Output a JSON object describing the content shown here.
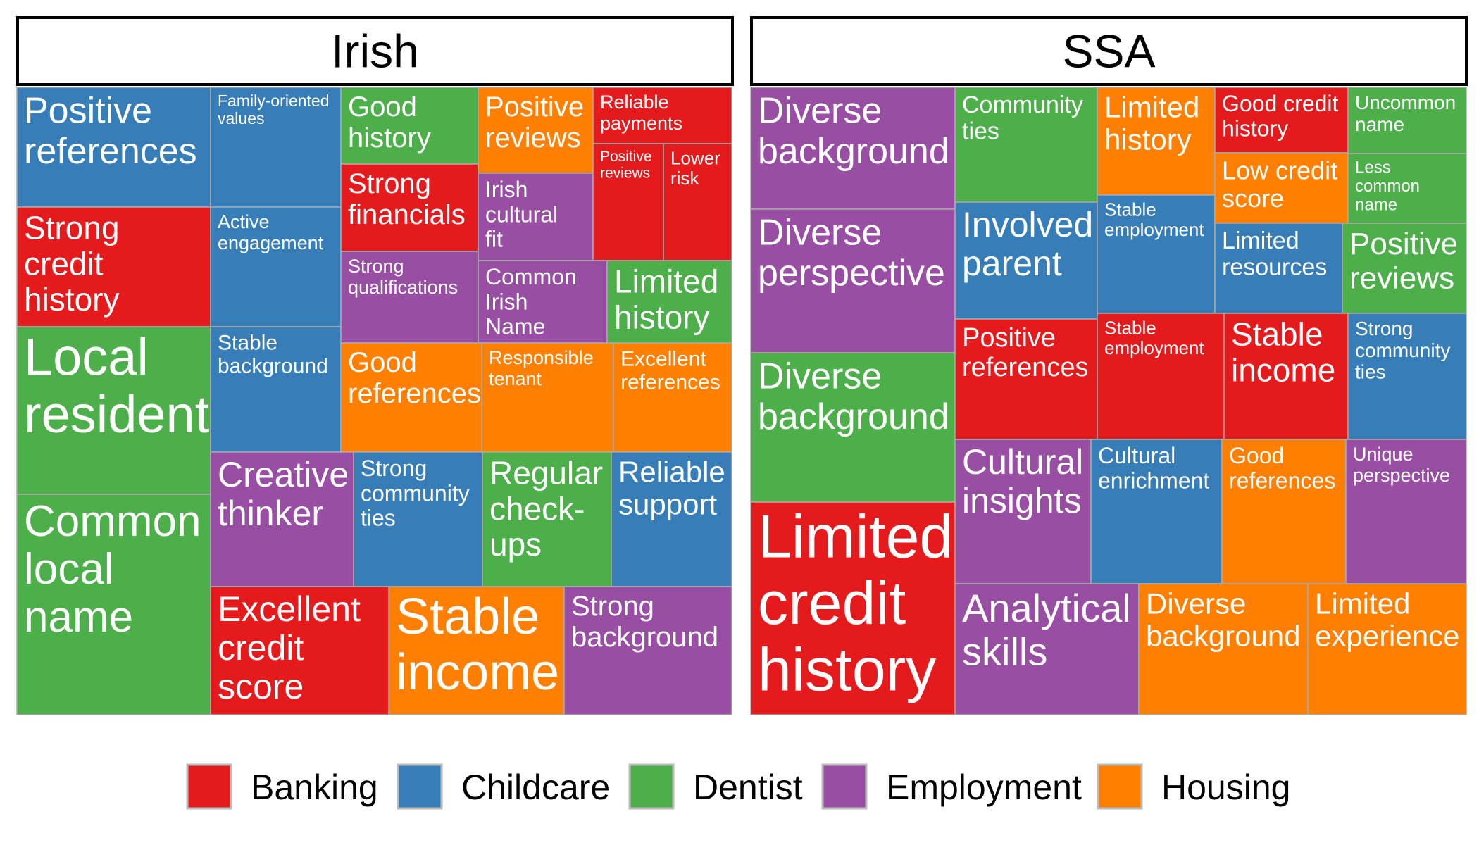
{
  "chart_data": {
    "type": "treemap",
    "colors": {
      "Banking": "#e41a1c",
      "Childcare": "#377eb8",
      "Dentist": "#4daf4a",
      "Employment": "#984ea3",
      "Housing": "#ff7f00"
    },
    "legend": {
      "position": "bottom",
      "items": [
        "Banking",
        "Childcare",
        "Dentist",
        "Employment",
        "Housing"
      ]
    },
    "panels": [
      {
        "title": "Irish",
        "cells": [
          {
            "label": "Positive references",
            "category": "Childcare"
          },
          {
            "label": "Strong credit history",
            "category": "Banking"
          },
          {
            "label": "Local resident",
            "category": "Dentist"
          },
          {
            "label": "Common local name",
            "category": "Dentist"
          },
          {
            "label": "Family-oriented values",
            "category": "Childcare"
          },
          {
            "label": "Active engagement",
            "category": "Childcare"
          },
          {
            "label": "Stable background",
            "category": "Childcare"
          },
          {
            "label": "Good history",
            "category": "Dentist"
          },
          {
            "label": "Strong financials",
            "category": "Banking"
          },
          {
            "label": "Strong qualifications",
            "category": "Employment"
          },
          {
            "label": "Positive reviews",
            "category": "Housing"
          },
          {
            "label": "Irish cultural fit",
            "category": "Employment"
          },
          {
            "label": "Reliable payments",
            "category": "Banking"
          },
          {
            "label": "Positive reviews",
            "category": "Banking"
          },
          {
            "label": "Lower risk",
            "category": "Banking"
          },
          {
            "label": "Common Irish Name",
            "category": "Employment"
          },
          {
            "label": "Limited history",
            "category": "Dentist"
          },
          {
            "label": "Good references",
            "category": "Housing"
          },
          {
            "label": "Responsible tenant",
            "category": "Housing"
          },
          {
            "label": "Excellent references",
            "category": "Housing"
          },
          {
            "label": "Creative thinker",
            "category": "Employment"
          },
          {
            "label": "Strong community ties",
            "category": "Childcare"
          },
          {
            "label": "Regular check-ups",
            "category": "Dentist"
          },
          {
            "label": "Reliable support",
            "category": "Childcare"
          },
          {
            "label": "Excellent credit score",
            "category": "Banking"
          },
          {
            "label": "Stable income",
            "category": "Housing"
          },
          {
            "label": "Strong background",
            "category": "Employment"
          }
        ]
      },
      {
        "title": "SSA",
        "cells": [
          {
            "label": "Diverse background",
            "category": "Employment"
          },
          {
            "label": "Diverse perspective",
            "category": "Employment"
          },
          {
            "label": "Diverse background",
            "category": "Dentist"
          },
          {
            "label": "Limited credit history",
            "category": "Banking"
          },
          {
            "label": "Community ties",
            "category": "Dentist"
          },
          {
            "label": "Involved parent",
            "category": "Childcare"
          },
          {
            "label": "Limited history",
            "category": "Housing"
          },
          {
            "label": "Stable employment",
            "category": "Childcare"
          },
          {
            "label": "Good credit history",
            "category": "Banking"
          },
          {
            "label": "Low credit score",
            "category": "Housing"
          },
          {
            "label": "Uncommon name",
            "category": "Dentist"
          },
          {
            "label": "Less common name",
            "category": "Dentist"
          },
          {
            "label": "Limited resources",
            "category": "Childcare"
          },
          {
            "label": "Positive reviews",
            "category": "Dentist"
          },
          {
            "label": "Positive references",
            "category": "Banking"
          },
          {
            "label": "Stable employment",
            "category": "Banking"
          },
          {
            "label": "Stable income",
            "category": "Banking"
          },
          {
            "label": "Strong community ties",
            "category": "Childcare"
          },
          {
            "label": "Cultural insights",
            "category": "Employment"
          },
          {
            "label": "Cultural enrichment",
            "category": "Childcare"
          },
          {
            "label": "Good references",
            "category": "Housing"
          },
          {
            "label": "Unique perspective",
            "category": "Employment"
          },
          {
            "label": "Analytical skills",
            "category": "Employment"
          },
          {
            "label": "Diverse background",
            "category": "Housing"
          },
          {
            "label": "Limited experience",
            "category": "Housing"
          }
        ]
      }
    ]
  }
}
